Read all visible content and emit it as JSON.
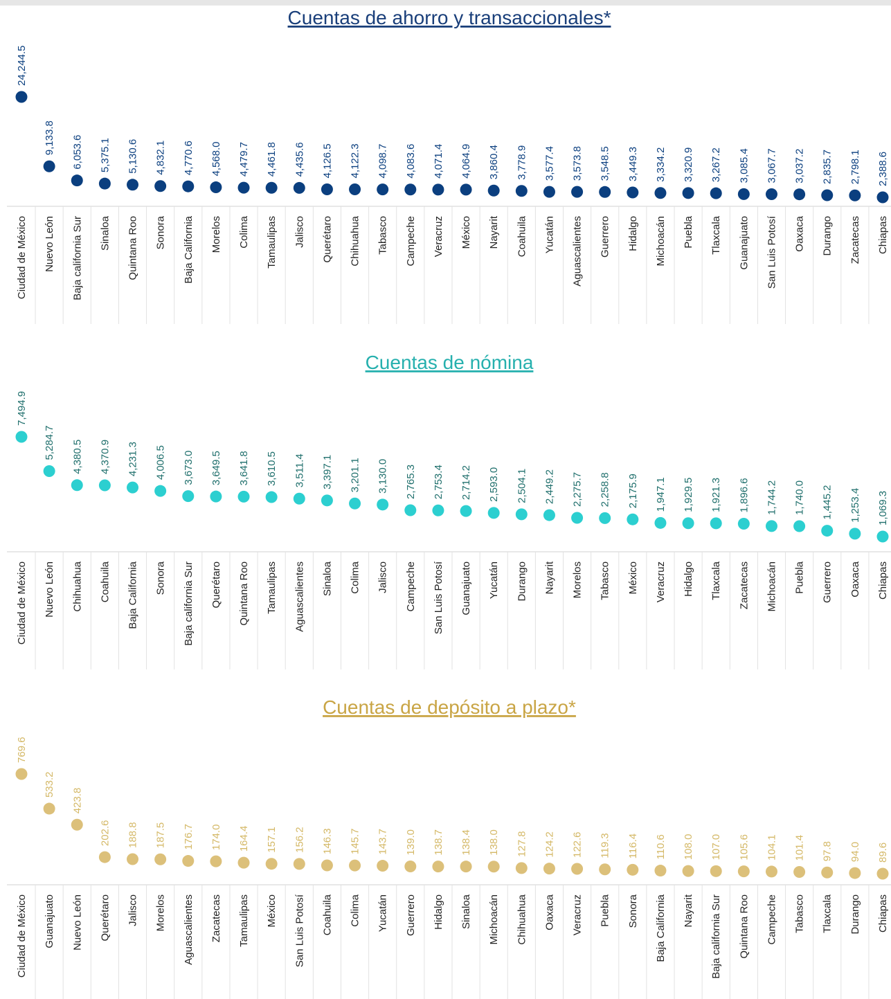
{
  "chart_data": [
    {
      "type": "dot",
      "title": "Cuentas de ahorro y transaccionales*",
      "color": "#0b3f7f",
      "label_color": "#0b3f7f",
      "categories": [
        "Ciudad de México",
        "Nuevo León",
        "Baja california Sur",
        "Sinaloa",
        "Quintana Roo",
        "Sonora",
        "Baja California",
        "Morelos",
        "Colima",
        "Tamaulipas",
        "Jalisco",
        "Querétaro",
        "Chihuahua",
        "Tabasco",
        "Campeche",
        "Veracruz",
        "México",
        "Nayarit",
        "Coahuila",
        "Yucatán",
        "Aguascalientes",
        "Guerrero",
        "Hidalgo",
        "Michoacán",
        "Puebla",
        "Tlaxcala",
        "Guanajuato",
        "San Luis Potosí",
        "Oaxaca",
        "Durango",
        "Zacatecas",
        "Chiapas"
      ],
      "values": [
        24244.5,
        9133.8,
        6053.6,
        5375.1,
        5130.6,
        4832.1,
        4770.6,
        4568.0,
        4479.7,
        4461.8,
        4435.6,
        4126.5,
        4122.3,
        4098.7,
        4083.6,
        4071.4,
        4064.9,
        3860.4,
        3778.9,
        3577.4,
        3573.8,
        3548.5,
        3449.3,
        3334.2,
        3320.9,
        3267.2,
        3085.4,
        3067.7,
        3037.2,
        2835.7,
        2798.1,
        2388.6
      ],
      "value_labels": [
        "24,244.5",
        "9,133.8",
        "6,053.6",
        "5,375.1",
        "5,130.6",
        "4,832.1",
        "4,770.6",
        "4,568.0",
        "4,479.7",
        "4,461.8",
        "4,435.6",
        "4,126.5",
        "4,122.3",
        "4,098.7",
        "4,083.6",
        "4,071.4",
        "4,064.9",
        "3,860.4",
        "3,778.9",
        "3,577.4",
        "3,573.8",
        "3,548.5",
        "3,449.3",
        "3,334.2",
        "3,320.9",
        "3,267.2",
        "3,085.4",
        "3,067.7",
        "3,037.2",
        "2,835.7",
        "2,798.1",
        "2,388.6"
      ]
    },
    {
      "type": "dot",
      "title": "Cuentas de nómina",
      "color": "#2ccfd0",
      "label_color": "#1f6f6c",
      "categories": [
        "Ciudad de México",
        "Nuevo León",
        "Chihuahua",
        "Coahuila",
        "Baja California",
        "Sonora",
        "Baja california Sur",
        "Querétaro",
        "Quintana Roo",
        "Tamaulipas",
        "Aguascalientes",
        "Sinaloa",
        "Colima",
        "Jalisco",
        "Campeche",
        "San Luis Potosí",
        "Guanajuato",
        "Yucatán",
        "Durango",
        "Nayarit",
        "Morelos",
        "Tabasco",
        "México",
        "Veracruz",
        "Hidalgo",
        "Tlaxcala",
        "Zacatecas",
        "Michoacán",
        "Puebla",
        "Guerrero",
        "Oaxaca",
        "Chiapas"
      ],
      "values": [
        7494.9,
        5284.7,
        4380.5,
        4370.9,
        4231.3,
        4006.5,
        3673.0,
        3649.5,
        3641.8,
        3610.5,
        3511.4,
        3397.1,
        3201.1,
        3130.0,
        2765.3,
        2753.4,
        2714.2,
        2593.0,
        2504.1,
        2449.2,
        2275.7,
        2258.8,
        2175.9,
        1947.1,
        1929.5,
        1921.3,
        1896.6,
        1744.2,
        1740.0,
        1445.2,
        1253.4,
        1069.3
      ],
      "value_labels": [
        "7,494.9",
        "5,284.7",
        "4,380.5",
        "4,370.9",
        "4,231.3",
        "4,006.5",
        "3,673.0",
        "3,649.5",
        "3,641.8",
        "3,610.5",
        "3,511.4",
        "3,397.1",
        "3,201.1",
        "3,130.0",
        "2,765.3",
        "2,753.4",
        "2,714.2",
        "2,593.0",
        "2,504.1",
        "2,449.2",
        "2,275.7",
        "2,258.8",
        "2,175.9",
        "1,947.1",
        "1,929.5",
        "1,921.3",
        "1,896.6",
        "1,744.2",
        "1,740.0",
        "1,445.2",
        "1,253.4",
        "1,069.3"
      ]
    },
    {
      "type": "dot",
      "title": "Cuentas de depósito a plazo*",
      "color": "#dcc07a",
      "label_color": "#d4b866",
      "categories": [
        "Ciudad de México",
        "Guanajuato",
        "Nuevo León",
        "Querétaro",
        "Jalisco",
        "Morelos",
        "Aguascalientes",
        "Zacatecas",
        "Tamaulipas",
        "México",
        "San Luis Potosí",
        "Coahuila",
        "Colima",
        "Yucatán",
        "Guerrero",
        "Hidalgo",
        "Sinaloa",
        "Michoacán",
        "Chihuahua",
        "Oaxaca",
        "Veracruz",
        "Puebla",
        "Sonora",
        "Baja California",
        "Nayarit",
        "Baja california Sur",
        "Quintana Roo",
        "Campeche",
        "Tabasco",
        "Tlaxcala",
        "Durango",
        "Chiapas"
      ],
      "values": [
        769.6,
        533.2,
        423.8,
        202.6,
        188.8,
        187.5,
        176.7,
        174.0,
        164.4,
        157.1,
        156.2,
        146.3,
        145.7,
        143.7,
        139.0,
        138.7,
        138.4,
        138.0,
        127.8,
        124.2,
        122.6,
        119.3,
        116.4,
        110.6,
        108.0,
        107.0,
        105.6,
        104.1,
        101.4,
        97.8,
        94.0,
        89.6
      ],
      "value_labels": [
        "769.6",
        "533.2",
        "423.8",
        "202.6",
        "188.8",
        "187.5",
        "176.7",
        "174.0",
        "164.4",
        "157.1",
        "156.2",
        "146.3",
        "145.7",
        "143.7",
        "139.0",
        "138.7",
        "138.4",
        "138.0",
        "127.8",
        "124.2",
        "122.6",
        "119.3",
        "116.4",
        "110.6",
        "108.0",
        "107.0",
        "105.6",
        "104.1",
        "101.4",
        "97.8",
        "94.0",
        "89.6"
      ]
    }
  ]
}
